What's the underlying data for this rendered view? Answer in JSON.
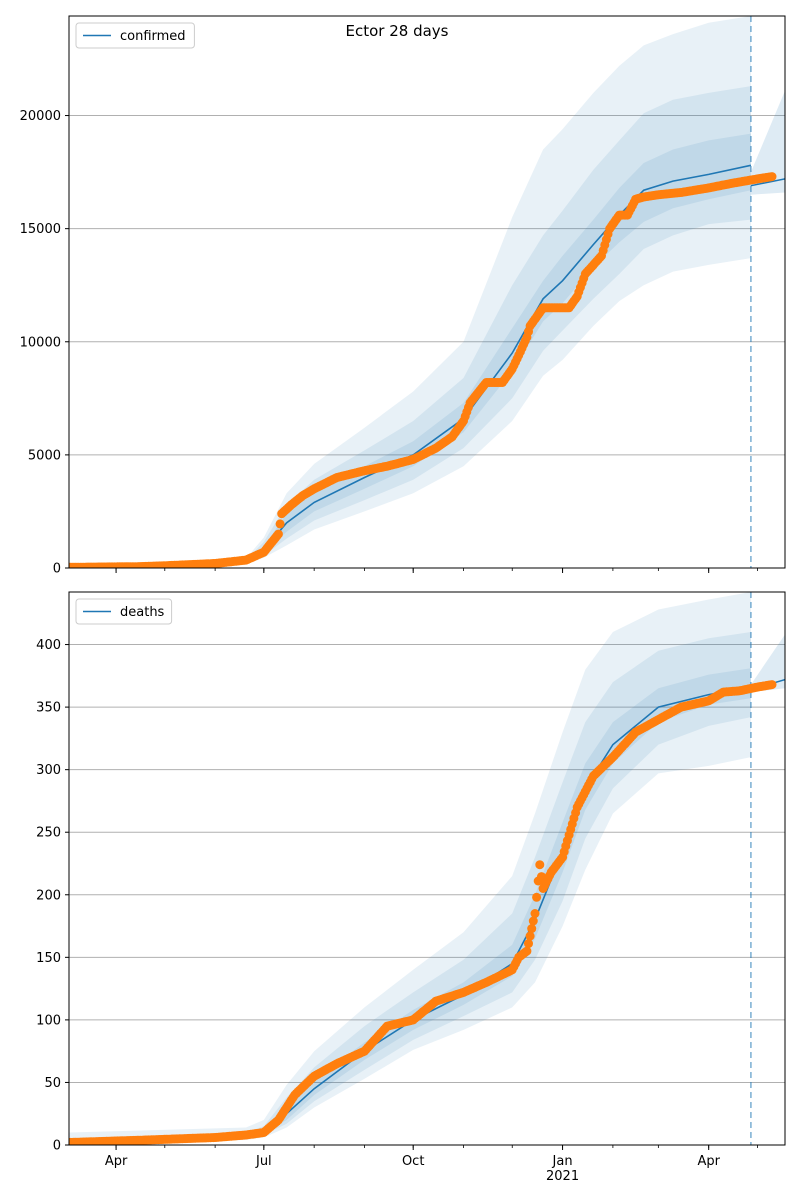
{
  "figure_title": "Ector 28 days",
  "colors": {
    "model": "#1f77b4",
    "observed": "#ff7f0e",
    "band": "#1f77b4",
    "grid": "#b0b0b0"
  },
  "chart_data": [
    {
      "type": "line",
      "title": "Ector 28 days",
      "legend": {
        "entries": [
          "confirmed"
        ],
        "placement": "top-left"
      },
      "x_axis": {
        "type": "date",
        "range": [
          "2020-03-03",
          "2021-05-18"
        ],
        "tick_labels": [
          "Apr",
          "Jul",
          "Oct",
          "Jan\n2021",
          "Apr"
        ],
        "tick_dates": [
          "2020-04-01",
          "2020-07-01",
          "2020-10-01",
          "2021-01-01",
          "2021-04-01"
        ]
      },
      "y_axis": {
        "range": [
          0,
          24400
        ],
        "ticks": [
          0,
          5000,
          10000,
          15000,
          20000
        ]
      },
      "grid": "horizontal",
      "forecast_start": "2021-04-27",
      "model": {
        "dates": [
          "2020-03-03",
          "2020-06-20",
          "2020-07-01",
          "2020-07-15",
          "2020-08-01",
          "2020-09-01",
          "2020-10-01",
          "2020-11-01",
          "2020-12-01",
          "2020-12-20",
          "2021-01-01",
          "2021-01-20",
          "2021-02-05",
          "2021-02-20",
          "2021-03-10",
          "2021-04-01",
          "2021-04-27"
        ],
        "median": [
          0,
          250,
          800,
          2000,
          2900,
          4000,
          5000,
          6600,
          9500,
          11900,
          12700,
          14300,
          15600,
          16700,
          17100,
          17400,
          17800
        ],
        "lower_50": [
          0,
          220,
          650,
          1600,
          2500,
          3500,
          4500,
          6000,
          8700,
          10900,
          11700,
          13300,
          14400,
          15300,
          15900,
          16300,
          16700
        ],
        "upper_50": [
          0,
          300,
          950,
          2400,
          3400,
          4500,
          5600,
          7300,
          10600,
          12700,
          13800,
          15400,
          16800,
          17900,
          18500,
          18900,
          19200
        ],
        "lower_80": [
          0,
          180,
          550,
          1300,
          2100,
          3000,
          3900,
          5300,
          7500,
          9600,
          10500,
          11900,
          13000,
          14100,
          14700,
          15200,
          15400
        ],
        "upper_80": [
          0,
          360,
          1150,
          2800,
          3900,
          5200,
          6500,
          8400,
          12500,
          14700,
          15800,
          17600,
          18900,
          20100,
          20700,
          21000,
          21300
        ],
        "lower_95": [
          0,
          150,
          450,
          1000,
          1700,
          2500,
          3300,
          4500,
          6500,
          8500,
          9200,
          10700,
          11800,
          12500,
          13100,
          13400,
          13700
        ],
        "upper_95": [
          0,
          420,
          1350,
          3300,
          4600,
          6200,
          7800,
          10000,
          15500,
          18500,
          19400,
          21000,
          22200,
          23100,
          23600,
          24100,
          24400
        ]
      },
      "next_forecast": {
        "dates": [
          "2021-04-27",
          "2021-05-18"
        ],
        "median": [
          16900,
          17200
        ],
        "lower": [
          16500,
          16600
        ],
        "upper": [
          17500,
          21100
        ]
      },
      "observed": {
        "dates": [
          "2020-03-03",
          "2020-04-15",
          "2020-05-01",
          "2020-06-01",
          "2020-06-20",
          "2020-07-01",
          "2020-07-10",
          "2020-07-12",
          "2020-07-18",
          "2020-07-25",
          "2020-08-01",
          "2020-08-15",
          "2020-09-01",
          "2020-09-15",
          "2020-10-01",
          "2020-10-15",
          "2020-10-25",
          "2020-11-01",
          "2020-11-05",
          "2020-11-15",
          "2020-11-20",
          "2020-11-25",
          "2020-12-01",
          "2020-12-05",
          "2020-12-10",
          "2020-12-12",
          "2020-12-20",
          "2021-01-01",
          "2021-01-05",
          "2021-01-10",
          "2021-01-15",
          "2021-01-20",
          "2021-01-25",
          "2021-01-30",
          "2021-02-05",
          "2021-02-10",
          "2021-02-15",
          "2021-02-20",
          "2021-03-01",
          "2021-03-15",
          "2021-04-01",
          "2021-04-15",
          "2021-05-01",
          "2021-05-10"
        ],
        "values": [
          30,
          60,
          100,
          200,
          350,
          700,
          1500,
          2400,
          2800,
          3200,
          3500,
          4000,
          4300,
          4500,
          4800,
          5300,
          5800,
          6500,
          7300,
          8200,
          8200,
          8200,
          8800,
          9400,
          10200,
          10700,
          11500,
          11500,
          11500,
          12000,
          13000,
          13400,
          13800,
          15000,
          15600,
          15600,
          16300,
          16400,
          16500,
          16600,
          16800,
          17000,
          17200,
          17300
        ]
      }
    },
    {
      "type": "line",
      "legend": {
        "entries": [
          "deaths"
        ],
        "placement": "top-left"
      },
      "x_axis": {
        "type": "date",
        "range": [
          "2020-03-03",
          "2021-05-18"
        ],
        "tick_labels": [
          "Apr",
          "Jul",
          "Oct",
          "Jan\n2021",
          "Apr"
        ],
        "tick_dates": [
          "2020-04-01",
          "2020-07-01",
          "2020-10-01",
          "2021-01-01",
          "2021-04-01"
        ]
      },
      "y_axis": {
        "range": [
          0,
          442
        ],
        "ticks": [
          0,
          50,
          100,
          150,
          200,
          250,
          300,
          350,
          400
        ]
      },
      "grid": "horizontal",
      "forecast_start": "2021-04-27",
      "model": {
        "dates": [
          "2020-03-03",
          "2020-06-20",
          "2020-07-01",
          "2020-07-15",
          "2020-08-01",
          "2020-09-01",
          "2020-10-01",
          "2020-11-01",
          "2020-12-01",
          "2020-12-15",
          "2021-01-01",
          "2021-01-15",
          "2021-02-01",
          "2021-03-01",
          "2021-04-01",
          "2021-04-27"
        ],
        "median": [
          2,
          7,
          10,
          25,
          45,
          75,
          100,
          120,
          145,
          180,
          235,
          285,
          320,
          350,
          360,
          366
        ],
        "lower_50": [
          1,
          6,
          9,
          20,
          40,
          68,
          92,
          112,
          135,
          165,
          218,
          268,
          305,
          338,
          352,
          357
        ],
        "upper_50": [
          3,
          8,
          12,
          30,
          52,
          82,
          108,
          130,
          160,
          200,
          258,
          305,
          338,
          365,
          376,
          381
        ],
        "lower_80": [
          1,
          5,
          8,
          17,
          35,
          60,
          84,
          103,
          122,
          148,
          195,
          245,
          285,
          320,
          335,
          342
        ],
        "upper_80": [
          5,
          10,
          15,
          38,
          62,
          95,
          122,
          148,
          185,
          230,
          290,
          338,
          370,
          395,
          405,
          410
        ],
        "lower_95": [
          0,
          4,
          6,
          14,
          30,
          53,
          76,
          92,
          110,
          130,
          175,
          220,
          265,
          297,
          303,
          310
        ],
        "upper_95": [
          10,
          14,
          20,
          48,
          75,
          110,
          140,
          170,
          215,
          265,
          330,
          380,
          410,
          428,
          436,
          442
        ]
      },
      "next_forecast": {
        "dates": [
          "2021-04-27",
          "2021-05-18"
        ],
        "median": [
          364,
          372
        ],
        "lower": [
          362,
          365
        ],
        "upper": [
          368,
          408
        ]
      },
      "observed": {
        "dates": [
          "2020-03-03",
          "2020-04-20",
          "2020-06-01",
          "2020-06-20",
          "2020-07-01",
          "2020-07-10",
          "2020-07-20",
          "2020-08-01",
          "2020-08-15",
          "2020-09-01",
          "2020-09-15",
          "2020-10-01",
          "2020-10-15",
          "2020-11-01",
          "2020-11-15",
          "2020-12-01",
          "2020-12-05",
          "2020-12-10",
          "2020-12-15",
          "2020-12-18",
          "2020-12-20",
          "2020-12-25",
          "2021-01-01",
          "2021-01-10",
          "2021-01-20",
          "2021-02-01",
          "2021-02-15",
          "2021-03-01",
          "2021-03-15",
          "2021-04-01",
          "2021-04-10",
          "2021-04-20",
          "2021-05-01",
          "2021-05-10"
        ],
        "values": [
          2,
          4,
          6,
          8,
          10,
          20,
          40,
          55,
          65,
          75,
          95,
          100,
          115,
          122,
          130,
          140,
          150,
          155,
          185,
          224,
          205,
          218,
          230,
          270,
          295,
          310,
          330,
          340,
          350,
          355,
          362,
          363,
          366,
          368
        ]
      }
    }
  ]
}
